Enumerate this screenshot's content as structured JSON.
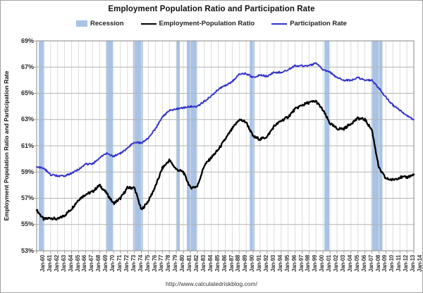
{
  "title": "Employment Population Ratio and Participation Rate",
  "legend": {
    "recession_label": "Recession",
    "employment_label": "Employment-Population Ratio",
    "participation_label": "Participation Rate"
  },
  "y_axis_title": "Employment Population Ratio and Participation Rate",
  "footer": {
    "url": "http://www.calculatedriskblog.com/"
  },
  "chart_data": {
    "type": "line",
    "title": "Employment Population Ratio and Participation Rate",
    "xlabel": "",
    "ylabel": "Employment Population Ratio and Participation Rate",
    "ylim": [
      53,
      69
    ],
    "y_tick_step": 2,
    "y_tick_labels": [
      "69%",
      "67%",
      "65%",
      "63%",
      "61%",
      "59%",
      "57%",
      "55%",
      "53%"
    ],
    "x_start_year": 1960,
    "x_end_year": 2014,
    "x_tick_labels": [
      "Jan-60",
      "Jan-61",
      "Jan-62",
      "Jan-63",
      "Jan-64",
      "Jan-65",
      "Jan-66",
      "Jan-67",
      "Jan-68",
      "Jan-69",
      "Jan-70",
      "Jan-71",
      "Jan-72",
      "Jan-73",
      "Jan-74",
      "Jan-75",
      "Jan-76",
      "Jan-77",
      "Jan-78",
      "Jan-79",
      "Jan-80",
      "Jan-81",
      "Jan-82",
      "Jan-83",
      "Jan-84",
      "Jan-85",
      "Jan-86",
      "Jan-87",
      "Jan-88",
      "Jan-89",
      "Jan-90",
      "Jan-91",
      "Jan-92",
      "Jan-93",
      "Jan-94",
      "Jan-95",
      "Jan-96",
      "Jan-97",
      "Jan-98",
      "Jan-99",
      "Jan-00",
      "Jan-01",
      "Jan-02",
      "Jan-03",
      "Jan-04",
      "Jan-05",
      "Jan-06",
      "Jan-07",
      "Jan-08",
      "Jan-09",
      "Jan-10",
      "Jan-11",
      "Jan-12",
      "Jan-13",
      "Jan-14"
    ],
    "grid": true,
    "legend_position": "top",
    "series": [
      {
        "name": "Employment-Population Ratio",
        "color": "#000000",
        "values": [
          56.1,
          55.4,
          55.5,
          55.4,
          55.7,
          56.2,
          56.9,
          57.3,
          57.5,
          58.0,
          57.4,
          56.6,
          57.0,
          57.8,
          57.8,
          56.1,
          56.8,
          57.9,
          59.3,
          59.9,
          59.2,
          59.0,
          57.8,
          57.9,
          59.5,
          60.1,
          60.7,
          61.5,
          62.3,
          63.0,
          62.8,
          61.7,
          61.5,
          61.7,
          62.5,
          62.9,
          63.2,
          63.8,
          64.1,
          64.3,
          64.4,
          63.7,
          62.7,
          62.3,
          62.3,
          62.7,
          63.1,
          63.0,
          62.2,
          59.3,
          58.5,
          58.4,
          58.6,
          58.6,
          58.8
        ]
      },
      {
        "name": "Participation Rate",
        "color": "#3333cc",
        "values": [
          59.4,
          59.3,
          58.8,
          58.7,
          58.7,
          58.9,
          59.2,
          59.6,
          59.6,
          60.1,
          60.4,
          60.2,
          60.4,
          60.8,
          61.3,
          61.2,
          61.6,
          62.3,
          63.2,
          63.7,
          63.8,
          63.9,
          64.0,
          64.0,
          64.4,
          64.8,
          65.3,
          65.6,
          65.9,
          66.5,
          66.5,
          66.2,
          66.4,
          66.3,
          66.6,
          66.6,
          66.8,
          67.1,
          67.1,
          67.1,
          67.3,
          66.8,
          66.6,
          66.2,
          66.0,
          66.0,
          66.2,
          66.0,
          66.0,
          65.4,
          64.7,
          64.1,
          63.7,
          63.3,
          63.0
        ]
      }
    ],
    "recessions": [
      {
        "start": 1960.3,
        "end": 1961.1
      },
      {
        "start": 1969.9,
        "end": 1970.9
      },
      {
        "start": 1973.8,
        "end": 1975.2
      },
      {
        "start": 1980.0,
        "end": 1980.5
      },
      {
        "start": 1981.5,
        "end": 1982.9
      },
      {
        "start": 1990.5,
        "end": 1991.2
      },
      {
        "start": 2001.2,
        "end": 2001.9
      },
      {
        "start": 2007.9,
        "end": 2009.5
      }
    ],
    "recession_color": "#a8c3e6",
    "axis_color": "#9b9b9b",
    "h_grid_color": "#b4b4b4",
    "v_grid_color": "#dcdcdc"
  }
}
